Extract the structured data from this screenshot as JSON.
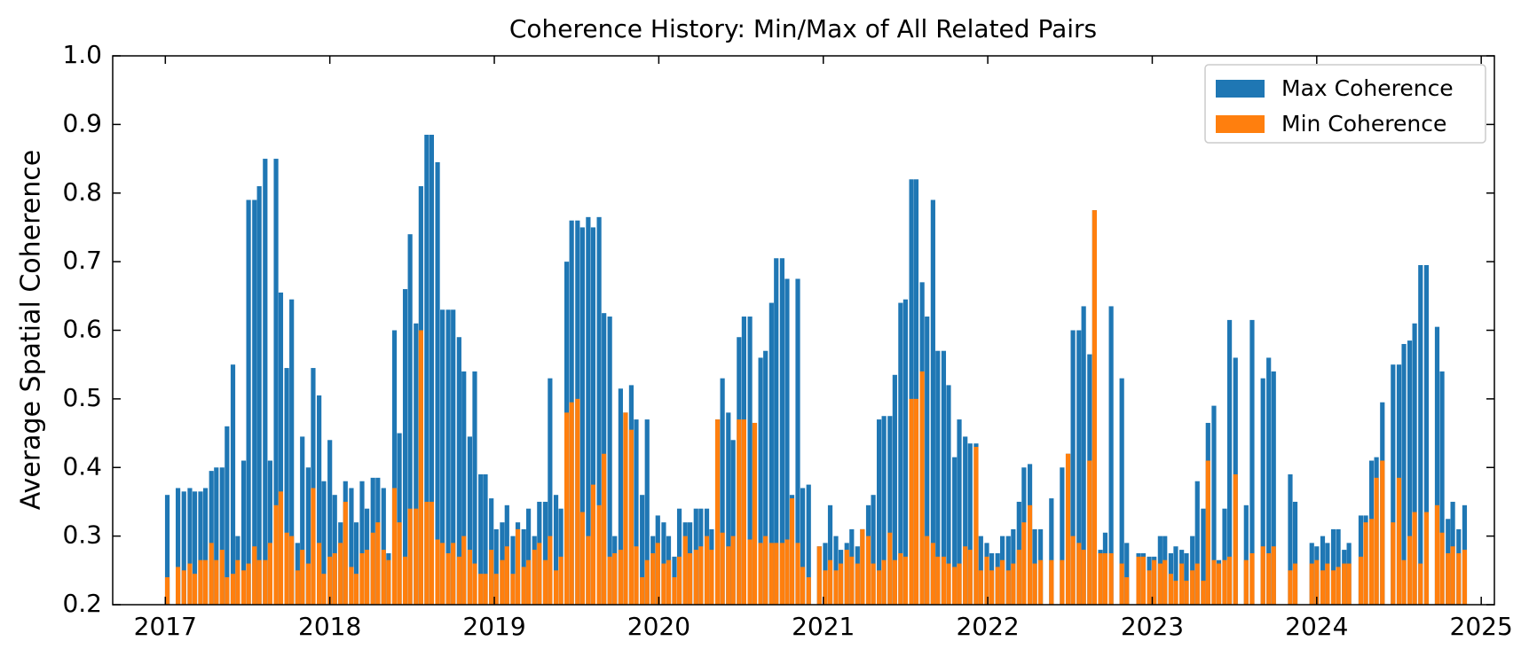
{
  "chart_data": {
    "type": "bar",
    "title": "Coherence History: Min/Max of All Related Pairs",
    "y_label": "Average Spatial Coherence",
    "xlim": [
      2016.68,
      2025.08
    ],
    "xticks": [
      2017,
      2018,
      2019,
      2020,
      2021,
      2022,
      2023,
      2024,
      2025
    ],
    "ylim": [
      0.2,
      1.0
    ],
    "yticks": [
      0.2,
      0.3,
      0.4,
      0.5,
      0.6,
      0.7,
      0.8,
      0.9,
      {
        "value": 1,
        "label": "1.0"
      }
    ],
    "legend": "upper right",
    "x": [
      2017.012,
      2017.077,
      2017.113,
      2017.149,
      2017.179,
      2017.214,
      2017.244,
      2017.28,
      2017.31,
      2017.345,
      2017.375,
      2017.411,
      2017.44,
      2017.476,
      2017.506,
      2017.542,
      2017.571,
      2017.607,
      2017.637,
      2017.673,
      2017.702,
      2017.738,
      2017.768,
      2017.804,
      2017.833,
      2017.869,
      2017.899,
      2017.935,
      2017.964,
      2018.0,
      2018.03,
      2018.065,
      2018.095,
      2018.131,
      2018.161,
      2018.196,
      2018.226,
      2018.262,
      2018.292,
      2018.327,
      2018.357,
      2018.393,
      2018.423,
      2018.458,
      2018.488,
      2018.524,
      2018.554,
      2018.589,
      2018.619,
      2018.655,
      2018.685,
      2018.72,
      2018.75,
      2018.786,
      2018.815,
      2018.851,
      2018.881,
      2018.917,
      2018.946,
      2018.982,
      2019.012,
      2019.048,
      2019.077,
      2019.113,
      2019.143,
      2019.179,
      2019.208,
      2019.244,
      2019.274,
      2019.31,
      2019.339,
      2019.375,
      2019.405,
      2019.44,
      2019.47,
      2019.506,
      2019.536,
      2019.571,
      2019.601,
      2019.637,
      2019.667,
      2019.702,
      2019.732,
      2019.768,
      2019.798,
      2019.833,
      2019.863,
      2019.899,
      2019.929,
      2019.964,
      2019.994,
      2020.03,
      2020.06,
      2020.095,
      2020.125,
      2020.161,
      2020.19,
      2020.226,
      2020.256,
      2020.292,
      2020.321,
      2020.357,
      2020.387,
      2020.423,
      2020.452,
      2020.488,
      2020.518,
      2020.554,
      2020.583,
      2020.619,
      2020.649,
      2020.685,
      2020.714,
      2020.75,
      2020.78,
      2020.81,
      2020.845,
      2020.875,
      2020.911,
      2020.976,
      2021.012,
      2021.042,
      2021.077,
      2021.107,
      2021.143,
      2021.173,
      2021.208,
      2021.238,
      2021.274,
      2021.304,
      2021.339,
      2021.369,
      2021.405,
      2021.435,
      2021.47,
      2021.5,
      2021.536,
      2021.565,
      2021.601,
      2021.631,
      2021.667,
      2021.696,
      2021.732,
      2021.762,
      2021.798,
      2021.827,
      2021.863,
      2021.893,
      2021.929,
      2021.958,
      2021.994,
      2022.024,
      2022.06,
      2022.089,
      2022.125,
      2022.155,
      2022.19,
      2022.22,
      2022.256,
      2022.286,
      2022.321,
      2022.387,
      2022.452,
      2022.488,
      2022.518,
      2022.554,
      2022.583,
      2022.619,
      2022.649,
      2022.685,
      2022.714,
      2022.75,
      2022.815,
      2022.845,
      2022.917,
      2022.946,
      2022.982,
      2023.012,
      2023.048,
      2023.077,
      2023.113,
      2023.143,
      2023.179,
      2023.208,
      2023.244,
      2023.274,
      2023.31,
      2023.339,
      2023.375,
      2023.405,
      2023.44,
      2023.47,
      2023.506,
      2023.571,
      2023.607,
      2023.673,
      2023.708,
      2023.738,
      2023.839,
      2023.869,
      2023.97,
      2024.0,
      2024.036,
      2024.065,
      2024.101,
      2024.131,
      2024.167,
      2024.196,
      2024.268,
      2024.298,
      2024.333,
      2024.363,
      2024.399,
      2024.464,
      2024.5,
      2024.53,
      2024.565,
      2024.595,
      2024.631,
      2024.667,
      2024.732,
      2024.762,
      2024.798,
      2024.827,
      2024.863,
      2024.899
    ],
    "series": [
      {
        "name": "Max Coherence",
        "color": "#1f77b4",
        "values": [
          0.36,
          0.37,
          0.365,
          0.37,
          0.365,
          0.365,
          0.37,
          0.395,
          0.4,
          0.4,
          0.46,
          0.55,
          0.3,
          0.41,
          0.79,
          0.79,
          0.81,
          0.85,
          0.41,
          0.85,
          0.655,
          0.545,
          0.645,
          0.29,
          0.445,
          0.4,
          0.545,
          0.505,
          0.38,
          0.44,
          0.36,
          0.32,
          0.38,
          0.37,
          0.32,
          0.38,
          0.34,
          0.385,
          0.385,
          0.37,
          0.275,
          0.6,
          0.45,
          0.66,
          0.74,
          0.61,
          0.81,
          0.885,
          0.885,
          0.845,
          0.63,
          0.63,
          0.63,
          0.59,
          0.54,
          0.445,
          0.54,
          0.39,
          0.39,
          0.355,
          0.31,
          0.32,
          0.345,
          0.3,
          0.32,
          0.31,
          0.34,
          0.3,
          0.35,
          0.35,
          0.53,
          0.36,
          0.34,
          0.7,
          0.76,
          0.76,
          0.75,
          0.765,
          0.75,
          0.765,
          0.625,
          0.62,
          0.3,
          0.515,
          0.48,
          0.52,
          0.47,
          0.36,
          0.47,
          0.3,
          0.33,
          0.32,
          0.3,
          0.27,
          0.34,
          0.32,
          0.32,
          0.34,
          0.34,
          0.34,
          0.31,
          0.47,
          0.53,
          0.48,
          0.44,
          0.59,
          0.62,
          0.62,
          0.465,
          0.56,
          0.57,
          0.64,
          0.705,
          0.705,
          0.675,
          0.36,
          0.675,
          0.37,
          0.375,
          0.285,
          0.29,
          0.345,
          0.3,
          0.28,
          0.29,
          0.31,
          0.285,
          0.31,
          0.345,
          0.36,
          0.47,
          0.475,
          0.475,
          0.535,
          0.64,
          0.645,
          0.82,
          0.82,
          0.67,
          0.62,
          0.79,
          0.57,
          0.57,
          0.52,
          0.415,
          0.47,
          0.445,
          0.435,
          0.435,
          0.3,
          0.29,
          0.275,
          0.275,
          0.3,
          0.3,
          0.31,
          0.35,
          0.4,
          0.405,
          0.31,
          0.31,
          0.355,
          0.4,
          0.42,
          0.6,
          0.6,
          0.635,
          0.565,
          0.775,
          0.28,
          0.305,
          0.635,
          0.53,
          0.29,
          0.275,
          0.275,
          0.27,
          0.27,
          0.3,
          0.3,
          0.275,
          0.285,
          0.28,
          0.275,
          0.3,
          0.38,
          0.34,
          0.465,
          0.49,
          0.265,
          0.34,
          0.615,
          0.56,
          0.345,
          0.615,
          0.53,
          0.56,
          0.54,
          0.39,
          0.35,
          0.29,
          0.285,
          0.3,
          0.29,
          0.31,
          0.31,
          0.28,
          0.29,
          0.33,
          0.33,
          0.41,
          0.415,
          0.495,
          0.55,
          0.55,
          0.58,
          0.585,
          0.61,
          0.695,
          0.695,
          0.605,
          0.54,
          0.325,
          0.35,
          0.31,
          0.345
        ]
      },
      {
        "name": "Min Coherence",
        "color": "#ff7f0e",
        "values": [
          0.24,
          0.255,
          0.25,
          0.26,
          0.245,
          0.265,
          0.265,
          0.29,
          0.265,
          0.28,
          0.24,
          0.245,
          0.265,
          0.25,
          0.26,
          0.285,
          0.265,
          0.265,
          0.29,
          0.345,
          0.365,
          0.305,
          0.3,
          0.25,
          0.28,
          0.26,
          0.37,
          0.29,
          0.245,
          0.27,
          0.275,
          0.29,
          0.35,
          0.255,
          0.245,
          0.275,
          0.28,
          0.305,
          0.32,
          0.28,
          0.265,
          0.37,
          0.32,
          0.27,
          0.34,
          0.34,
          0.6,
          0.35,
          0.35,
          0.295,
          0.29,
          0.275,
          0.29,
          0.27,
          0.3,
          0.28,
          0.26,
          0.245,
          0.245,
          0.28,
          0.245,
          0.265,
          0.285,
          0.245,
          0.31,
          0.255,
          0.265,
          0.28,
          0.29,
          0.265,
          0.3,
          0.25,
          0.27,
          0.48,
          0.495,
          0.5,
          0.335,
          0.3,
          0.375,
          0.345,
          0.42,
          0.27,
          0.275,
          0.28,
          0.48,
          0.455,
          0.285,
          0.24,
          0.265,
          0.275,
          0.29,
          0.26,
          0.265,
          0.24,
          0.27,
          0.3,
          0.275,
          0.28,
          0.285,
          0.3,
          0.28,
          0.47,
          0.305,
          0.285,
          0.3,
          0.47,
          0.47,
          0.295,
          0.465,
          0.29,
          0.3,
          0.29,
          0.29,
          0.29,
          0.295,
          0.355,
          0.29,
          0.255,
          0.24,
          0.285,
          0.25,
          0.265,
          0.25,
          0.26,
          0.28,
          0.27,
          0.26,
          0.31,
          0.3,
          0.26,
          0.25,
          0.265,
          0.305,
          0.265,
          0.275,
          0.27,
          0.5,
          0.5,
          0.54,
          0.3,
          0.29,
          0.27,
          0.27,
          0.26,
          0.255,
          0.26,
          0.285,
          0.28,
          0.43,
          0.25,
          0.27,
          0.25,
          0.255,
          0.265,
          0.25,
          0.26,
          0.28,
          0.32,
          0.345,
          0.26,
          0.265,
          0.265,
          0.265,
          0.42,
          0.3,
          0.29,
          0.28,
          0.41,
          0.775,
          0.275,
          0.275,
          0.275,
          0.26,
          0.24,
          0.27,
          0.27,
          0.25,
          0.265,
          0.26,
          0.265,
          0.245,
          0.235,
          0.26,
          0.235,
          0.25,
          0.26,
          0.235,
          0.41,
          0.265,
          0.26,
          0.265,
          0.27,
          0.39,
          0.265,
          0.275,
          0.285,
          0.275,
          0.285,
          0.25,
          0.26,
          0.26,
          0.265,
          0.25,
          0.26,
          0.25,
          0.255,
          0.26,
          0.26,
          0.27,
          0.32,
          0.325,
          0.385,
          0.41,
          0.32,
          0.385,
          0.265,
          0.3,
          0.335,
          0.26,
          0.335,
          0.345,
          0.305,
          0.275,
          0.285,
          0.275,
          0.28
        ]
      }
    ]
  }
}
